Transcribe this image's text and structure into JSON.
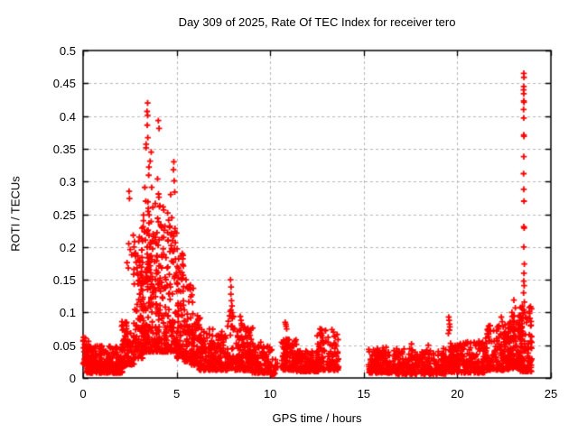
{
  "chart_data": {
    "type": "scatter",
    "title": "Day 309 of 2025, Rate Of TEC Index for receiver tero",
    "xlabel": "GPS time / hours",
    "ylabel": "ROTI / TECUs",
    "xlim": [
      0,
      25
    ],
    "ylim": [
      0,
      0.5
    ],
    "xticks": [
      {
        "v": 0,
        "label": "0"
      },
      {
        "v": 5,
        "label": "5"
      },
      {
        "v": 10,
        "label": "10"
      },
      {
        "v": 15,
        "label": "15"
      },
      {
        "v": 20,
        "label": "20"
      },
      {
        "v": 25,
        "label": "25"
      }
    ],
    "yticks": [
      {
        "v": 0,
        "label": "0"
      },
      {
        "v": 0.05,
        "label": "0.05"
      },
      {
        "v": 0.1,
        "label": "0.1"
      },
      {
        "v": 0.15,
        "label": "0.15"
      },
      {
        "v": 0.2,
        "label": "0.2"
      },
      {
        "v": 0.25,
        "label": "0.25"
      },
      {
        "v": 0.3,
        "label": "0.3"
      },
      {
        "v": 0.35,
        "label": "0.35"
      },
      {
        "v": 0.4,
        "label": "0.4"
      },
      {
        "v": 0.45,
        "label": "0.45"
      },
      {
        "v": 0.5,
        "label": "0.5"
      }
    ],
    "grid": {
      "shown": true,
      "style": "dashed",
      "color": "#b5b5b5"
    },
    "legend": {
      "shown": false
    },
    "marker": {
      "shape": "plus",
      "color": "#ff0000",
      "size": 7
    },
    "seed": 309,
    "points": [
      [
        23.55,
        0.465
      ],
      [
        23.56,
        0.459
      ],
      [
        23.55,
        0.445
      ],
      [
        23.54,
        0.44
      ],
      [
        23.55,
        0.434
      ],
      [
        23.55,
        0.423
      ],
      [
        23.56,
        0.421
      ],
      [
        23.54,
        0.41
      ],
      [
        23.55,
        0.397
      ],
      [
        23.55,
        0.371
      ],
      [
        23.56,
        0.369
      ],
      [
        23.55,
        0.338
      ],
      [
        23.54,
        0.312
      ],
      [
        23.55,
        0.288
      ],
      [
        23.56,
        0.27
      ],
      [
        23.55,
        0.231
      ],
      [
        23.57,
        0.229
      ],
      [
        23.55,
        0.2
      ],
      [
        23.58,
        0.174
      ],
      [
        23.56,
        0.16
      ],
      [
        23.55,
        0.148
      ],
      [
        23.57,
        0.141
      ],
      [
        23.54,
        0.13
      ],
      [
        23.58,
        0.116
      ],
      [
        23.55,
        0.104
      ],
      [
        3.45,
        0.42
      ],
      [
        3.42,
        0.407
      ],
      [
        3.45,
        0.401
      ],
      [
        3.43,
        0.386
      ],
      [
        3.46,
        0.367
      ],
      [
        3.37,
        0.357
      ],
      [
        3.64,
        0.345
      ],
      [
        3.58,
        0.331
      ],
      [
        3.52,
        0.322
      ],
      [
        4.02,
        0.393
      ],
      [
        4.06,
        0.381
      ],
      [
        3.98,
        0.304
      ],
      [
        4.03,
        0.281
      ],
      [
        4.05,
        0.276
      ],
      [
        4.1,
        0.263
      ],
      [
        4.85,
        0.33
      ],
      [
        4.83,
        0.318
      ],
      [
        4.87,
        0.301
      ],
      [
        4.9,
        0.284
      ],
      [
        4.68,
        0.28
      ],
      [
        4.52,
        0.252
      ],
      [
        4.57,
        0.241
      ],
      [
        4.62,
        0.23
      ],
      [
        4.73,
        0.221
      ],
      [
        4.78,
        0.21
      ],
      [
        3.3,
        0.291
      ],
      [
        3.35,
        0.27
      ],
      [
        3.49,
        0.259
      ],
      [
        3.53,
        0.249
      ],
      [
        2.46,
        0.285
      ],
      [
        2.48,
        0.274
      ],
      [
        2.44,
        0.205
      ],
      [
        2.52,
        0.196
      ],
      [
        2.6,
        0.188
      ],
      [
        2.68,
        0.218
      ],
      [
        2.72,
        0.2
      ],
      [
        2.8,
        0.186
      ],
      [
        2.35,
        0.176
      ],
      [
        2.42,
        0.168
      ],
      [
        3.02,
        0.172
      ],
      [
        3.08,
        0.158
      ],
      [
        5.3,
        0.19
      ],
      [
        5.33,
        0.182
      ],
      [
        5.36,
        0.171
      ],
      [
        5.28,
        0.161
      ],
      [
        5.5,
        0.15
      ],
      [
        5.56,
        0.139
      ],
      [
        7.88,
        0.15
      ],
      [
        7.91,
        0.139
      ],
      [
        7.9,
        0.128
      ],
      [
        7.93,
        0.118
      ],
      [
        10.8,
        0.085
      ],
      [
        10.83,
        0.082
      ],
      [
        10.85,
        0.079
      ],
      [
        10.88,
        0.075
      ],
      [
        19.54,
        0.093
      ],
      [
        19.56,
        0.088
      ],
      [
        19.58,
        0.082
      ],
      [
        19.6,
        0.078
      ],
      [
        19.57,
        0.073
      ],
      [
        19.52,
        0.068
      ],
      [
        23.02,
        0.119
      ],
      [
        23.1,
        0.107
      ],
      [
        22.92,
        0.1
      ],
      [
        22.35,
        0.093
      ],
      [
        22.4,
        0.086
      ],
      [
        8.4,
        0.094
      ],
      [
        8.44,
        0.088
      ],
      [
        8.47,
        0.083
      ],
      [
        13.3,
        0.074
      ],
      [
        13.38,
        0.07
      ],
      [
        0.03,
        0.062
      ],
      [
        0.05,
        0.057
      ],
      [
        0.08,
        0.051
      ],
      [
        0.02,
        0.046
      ],
      [
        0.06,
        0.04
      ],
      [
        0.1,
        0.034
      ],
      [
        2.08,
        0.086
      ],
      [
        2.12,
        0.08
      ],
      [
        2.15,
        0.074
      ],
      [
        17.55,
        0.052
      ],
      [
        18.45,
        0.05
      ],
      [
        20.45,
        0.054
      ],
      [
        21.15,
        0.056
      ],
      [
        22.2,
        0.075
      ],
      [
        22.55,
        0.081
      ],
      [
        23.35,
        0.096
      ]
    ],
    "noise_band_format": [
      "t_start_h",
      "t_end_h",
      "roti_min",
      "roti_max",
      "approx_point_count"
    ],
    "noise_bands": [
      [
        0.0,
        0.35,
        0.02,
        0.062,
        35
      ],
      [
        0.15,
        2.1,
        0.008,
        0.05,
        300
      ],
      [
        2.0,
        2.35,
        0.018,
        0.088,
        45
      ],
      [
        2.3,
        2.75,
        0.02,
        0.075,
        55
      ],
      [
        2.7,
        3.2,
        0.03,
        0.215,
        85
      ],
      [
        3.1,
        3.8,
        0.04,
        0.26,
        130
      ],
      [
        3.3,
        3.75,
        0.05,
        0.355,
        35
      ],
      [
        3.8,
        4.4,
        0.04,
        0.27,
        120
      ],
      [
        4.4,
        5.1,
        0.04,
        0.245,
        110
      ],
      [
        5.0,
        5.45,
        0.03,
        0.19,
        75
      ],
      [
        5.4,
        5.9,
        0.025,
        0.145,
        65
      ],
      [
        5.8,
        6.3,
        0.02,
        0.1,
        65
      ],
      [
        6.2,
        7.7,
        0.012,
        0.075,
        200
      ],
      [
        7.7,
        8.1,
        0.015,
        0.115,
        45
      ],
      [
        8.1,
        9.1,
        0.012,
        0.08,
        140
      ],
      [
        9.0,
        10.1,
        0.008,
        0.055,
        120
      ],
      [
        10.0,
        10.45,
        0.005,
        0.03,
        22
      ],
      [
        10.6,
        11.4,
        0.012,
        0.06,
        100
      ],
      [
        11.3,
        12.6,
        0.01,
        0.042,
        140
      ],
      [
        12.5,
        13.65,
        0.012,
        0.075,
        120
      ],
      [
        15.25,
        16.7,
        0.008,
        0.048,
        160
      ],
      [
        16.7,
        19.45,
        0.006,
        0.045,
        260
      ],
      [
        19.5,
        19.75,
        0.01,
        0.06,
        28
      ],
      [
        19.7,
        21.5,
        0.008,
        0.055,
        190
      ],
      [
        21.5,
        22.8,
        0.012,
        0.08,
        170
      ],
      [
        22.7,
        23.45,
        0.015,
        0.095,
        140
      ],
      [
        23.3,
        23.98,
        0.01,
        0.11,
        110
      ]
    ],
    "data_gaps_hours": [
      [
        13.7,
        15.2
      ]
    ]
  }
}
